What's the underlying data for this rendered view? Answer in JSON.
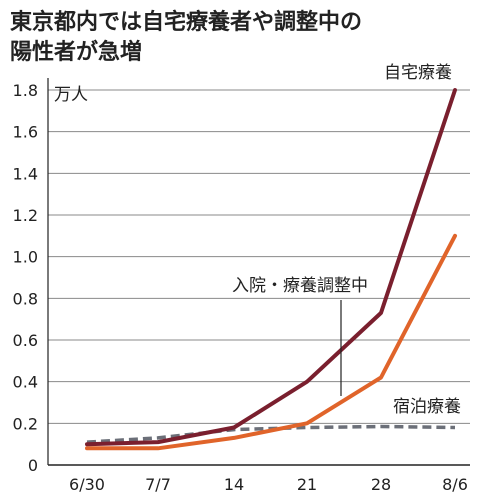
{
  "title_lines": [
    "東京都内では自宅療養者や調整中の",
    "陽性者が急増"
  ],
  "chart_data": {
    "type": "line",
    "unit": "万人",
    "categories": [
      "6/30",
      "7/7",
      "14",
      "21",
      "28",
      "8/6"
    ],
    "ylim": [
      0,
      1.8
    ],
    "yticks": [
      "0",
      "0.2",
      "0.4",
      "0.6",
      "0.8",
      "1.0",
      "1.2",
      "1.4",
      "1.6",
      "1.8"
    ],
    "grid": true,
    "series": [
      {
        "name": "自宅療養",
        "color": "#7a1f2e",
        "style": "solid",
        "values": [
          0.1,
          0.11,
          0.18,
          0.4,
          0.73,
          1.8
        ]
      },
      {
        "name": "入院・療養調整中",
        "color": "#e0642a",
        "style": "solid",
        "values": [
          0.08,
          0.08,
          0.13,
          0.2,
          0.42,
          1.1
        ]
      },
      {
        "name": "宿泊療養",
        "color": "#6b6f78",
        "style": "dashed",
        "values": [
          0.11,
          0.13,
          0.17,
          0.18,
          0.185,
          0.18
        ]
      }
    ]
  }
}
